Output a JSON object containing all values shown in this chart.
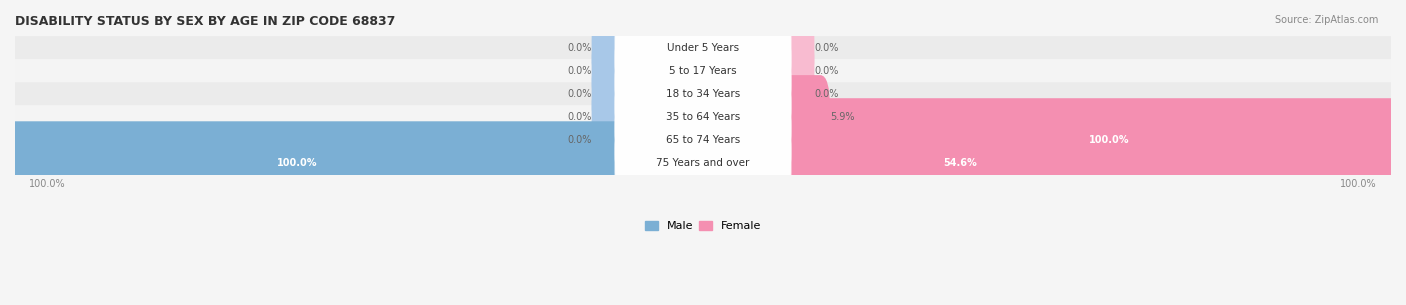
{
  "title": "DISABILITY STATUS BY SEX BY AGE IN ZIP CODE 68837",
  "source": "Source: ZipAtlas.com",
  "categories": [
    "Under 5 Years",
    "5 to 17 Years",
    "18 to 34 Years",
    "35 to 64 Years",
    "65 to 74 Years",
    "75 Years and over"
  ],
  "male_values": [
    0.0,
    0.0,
    0.0,
    0.0,
    0.0,
    100.0
  ],
  "female_values": [
    0.0,
    0.0,
    0.0,
    5.9,
    100.0,
    54.6
  ],
  "male_color": "#7bafd4",
  "female_color": "#f48fb1",
  "male_color_light": "#a8c8e8",
  "female_color_light": "#f8bbd0",
  "bar_bg_color": "#e8e8e8",
  "row_bg_color": "#f0f0f0",
  "row_bg_alt": "#e8e8e8",
  "title_color": "#333333",
  "label_color": "#555555",
  "axis_label_color": "#888888",
  "max_value": 100.0,
  "figsize": [
    14.06,
    3.05
  ],
  "dpi": 100
}
